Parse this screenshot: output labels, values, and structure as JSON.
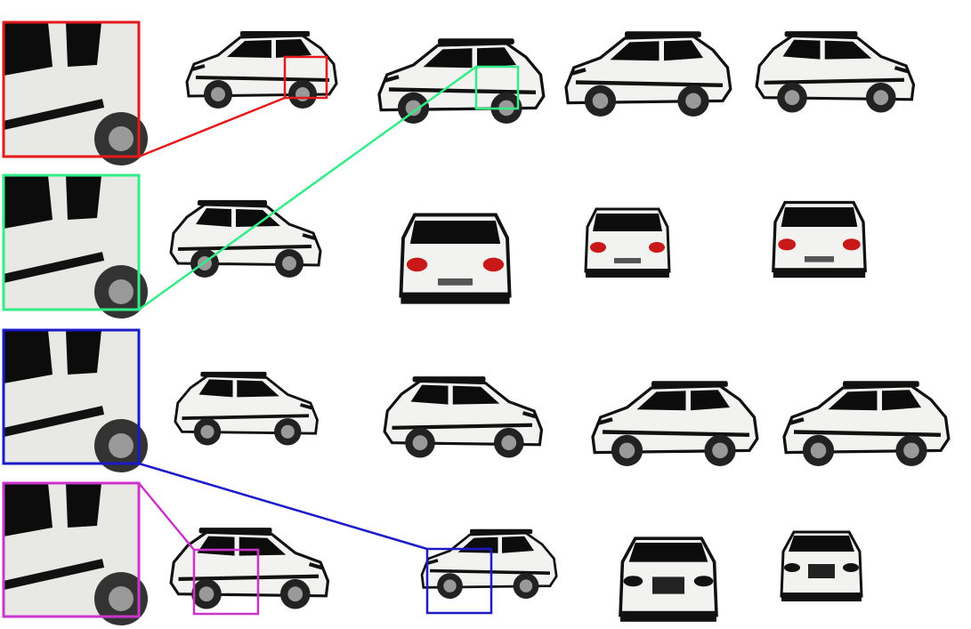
{
  "figure": {
    "description_type": "grid of rendered car views with zoom insets",
    "rows": 4,
    "cars_per_row": [
      4,
      4,
      4,
      4
    ],
    "car_color": "#f2f2f0",
    "window_color": "#0c0c0c",
    "taillight_color": "#c81818",
    "insets": [
      {
        "label": "red-inset",
        "color": "#e41a1a",
        "source_row": 0,
        "source_car": 0
      },
      {
        "label": "green-inset",
        "color": "#33ee88",
        "source_row": 0,
        "source_car": 1
      },
      {
        "label": "blue-inset",
        "color": "#1a1ac8",
        "source_row": 3,
        "source_car": 1
      },
      {
        "label": "magenta-inset",
        "color": "#cc33cc",
        "source_row": 3,
        "source_car": 0
      }
    ]
  }
}
